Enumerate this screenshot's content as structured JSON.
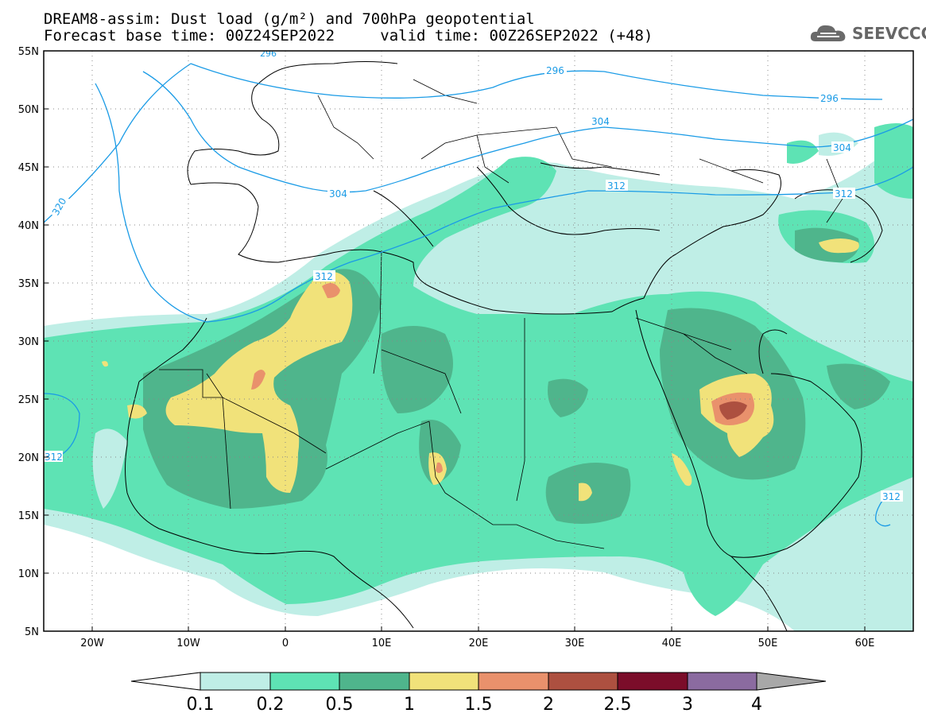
{
  "header": {
    "title_line1": "DREAM8-assim: Dust load (g/m²) and 700hPa geopotential",
    "title_line2_base": "Forecast base time: 00Z24SEP2022",
    "title_line2_valid": "valid time: 00Z26SEP2022 (+48)"
  },
  "logo": {
    "text": "SEEVCCC",
    "icon": "cloud-icon"
  },
  "map": {
    "lat_labels": [
      "55N",
      "50N",
      "45N",
      "40N",
      "35N",
      "30N",
      "25N",
      "20N",
      "15N",
      "10N",
      "5N"
    ],
    "lon_labels": [
      "20W",
      "10W",
      "0",
      "10E",
      "20E",
      "30E",
      "40E",
      "50E",
      "60E"
    ],
    "contour_labels": [
      "296",
      "296",
      "296",
      "304",
      "304",
      "304",
      "312",
      "312",
      "312",
      "312",
      "312",
      "320"
    ]
  },
  "legend": {
    "bounds": [
      "0.1",
      "0.2",
      "0.5",
      "1",
      "1.5",
      "2",
      "2.5",
      "3",
      "4"
    ],
    "colors": [
      "#ffffff",
      "#bfeee6",
      "#5ee3b4",
      "#4fb58c",
      "#f1e27a",
      "#e9916c",
      "#ad5040",
      "#7b0d2a",
      "#8b6ba0",
      "#a8a8a8"
    ]
  },
  "colors": {
    "coast": "#000000",
    "contour": "#1a9be6",
    "dust_very_light": "#bfeee6",
    "dust_light": "#5ee3b4",
    "dust_mid": "#4fb58c",
    "dust_yellow": "#f1e27a",
    "dust_orange": "#e9916c",
    "dust_red": "#ad5040"
  }
}
